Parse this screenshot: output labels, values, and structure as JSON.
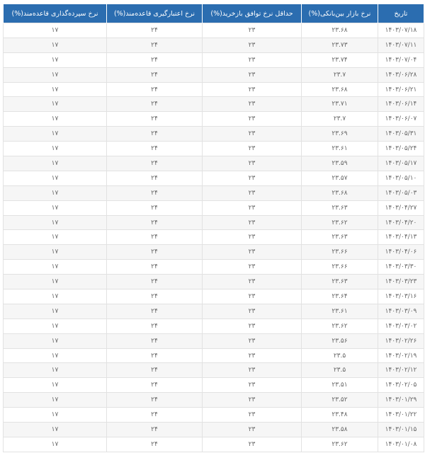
{
  "table": {
    "headers": [
      "تاریخ",
      "نرخ بازار بین‌بانکی(%)",
      "حداقل نرخ توافق بازخرید(%)",
      "نرخ اعتبارگیری قاعده‌مند(%)",
      "نرخ سپرده‌گذاری قاعده‌مند(%)"
    ],
    "rows": [
      [
        "۱۴۰۳/۰۷/۱۸",
        "۲۳.۶۸",
        "۲۳",
        "۲۴",
        "۱۷"
      ],
      [
        "۱۴۰۳/۰۷/۱۱",
        "۲۳.۷۳",
        "۲۳",
        "۲۴",
        "۱۷"
      ],
      [
        "۱۴۰۳/۰۷/۰۴",
        "۲۳.۷۴",
        "۲۳",
        "۲۴",
        "۱۷"
      ],
      [
        "۱۴۰۳/۰۶/۲۸",
        "۲۳.۷",
        "۲۳",
        "۲۴",
        "۱۷"
      ],
      [
        "۱۴۰۳/۰۶/۲۱",
        "۲۳.۶۸",
        "۲۳",
        "۲۴",
        "۱۷"
      ],
      [
        "۱۴۰۳/۰۶/۱۴",
        "۲۳.۷۱",
        "۲۳",
        "۲۴",
        "۱۷"
      ],
      [
        "۱۴۰۳/۰۶/۰۷",
        "۲۳.۷",
        "۲۳",
        "۲۴",
        "۱۷"
      ],
      [
        "۱۴۰۳/۰۵/۳۱",
        "۲۳.۶۹",
        "۲۳",
        "۲۴",
        "۱۷"
      ],
      [
        "۱۴۰۳/۰۵/۲۴",
        "۲۳.۶۱",
        "۲۳",
        "۲۴",
        "۱۷"
      ],
      [
        "۱۴۰۳/۰۵/۱۷",
        "۲۳.۵۹",
        "۲۳",
        "۲۴",
        "۱۷"
      ],
      [
        "۱۴۰۳/۰۵/۱۰",
        "۲۳.۵۷",
        "۲۳",
        "۲۴",
        "۱۷"
      ],
      [
        "۱۴۰۳/۰۵/۰۳",
        "۲۳.۶۸",
        "۲۳",
        "۲۴",
        "۱۷"
      ],
      [
        "۱۴۰۳/۰۴/۲۷",
        "۲۳.۶۳",
        "۲۳",
        "۲۴",
        "۱۷"
      ],
      [
        "۱۴۰۳/۰۴/۲۰",
        "۲۳.۶۲",
        "۲۳",
        "۲۴",
        "۱۷"
      ],
      [
        "۱۴۰۳/۰۴/۱۳",
        "۲۳.۶۳",
        "۲۳",
        "۲۴",
        "۱۷"
      ],
      [
        "۱۴۰۳/۰۴/۰۶",
        "۲۳.۶۶",
        "۲۳",
        "۲۴",
        "۱۷"
      ],
      [
        "۱۴۰۳/۰۳/۳۰",
        "۲۳.۶۶",
        "۲۳",
        "۲۴",
        "۱۷"
      ],
      [
        "۱۴۰۳/۰۳/۲۳",
        "۲۳.۶۳",
        "۲۳",
        "۲۴",
        "۱۷"
      ],
      [
        "۱۴۰۳/۰۳/۱۶",
        "۲۳.۶۴",
        "۲۳",
        "۲۴",
        "۱۷"
      ],
      [
        "۱۴۰۳/۰۳/۰۹",
        "۲۳.۶۱",
        "۲۳",
        "۲۴",
        "۱۷"
      ],
      [
        "۱۴۰۳/۰۳/۰۲",
        "۲۳.۶۲",
        "۲۳",
        "۲۴",
        "۱۷"
      ],
      [
        "۱۴۰۳/۰۲/۲۶",
        "۲۳.۵۶",
        "۲۳",
        "۲۴",
        "۱۷"
      ],
      [
        "۱۴۰۳/۰۲/۱۹",
        "۲۳.۵",
        "۲۳",
        "۲۴",
        "۱۷"
      ],
      [
        "۱۴۰۳/۰۲/۱۲",
        "۲۳.۵",
        "۲۳",
        "۲۴",
        "۱۷"
      ],
      [
        "۱۴۰۳/۰۲/۰۵",
        "۲۳.۵۱",
        "۲۳",
        "۲۴",
        "۱۷"
      ],
      [
        "۱۴۰۳/۰۱/۲۹",
        "۲۳.۵۲",
        "۲۳",
        "۲۴",
        "۱۷"
      ],
      [
        "۱۴۰۳/۰۱/۲۲",
        "۲۳.۴۸",
        "۲۳",
        "۲۴",
        "۱۷"
      ],
      [
        "۱۴۰۳/۰۱/۱۵",
        "۲۳.۵۸",
        "۲۳",
        "۲۴",
        "۱۷"
      ],
      [
        "۱۴۰۳/۰۱/۰۸",
        "۲۳.۶۲",
        "۲۳",
        "۲۴",
        "۱۷"
      ]
    ]
  },
  "colors": {
    "header_bg": "#2b6db0",
    "header_text": "#ffffff",
    "row_alt": "#f6f6f6"
  }
}
